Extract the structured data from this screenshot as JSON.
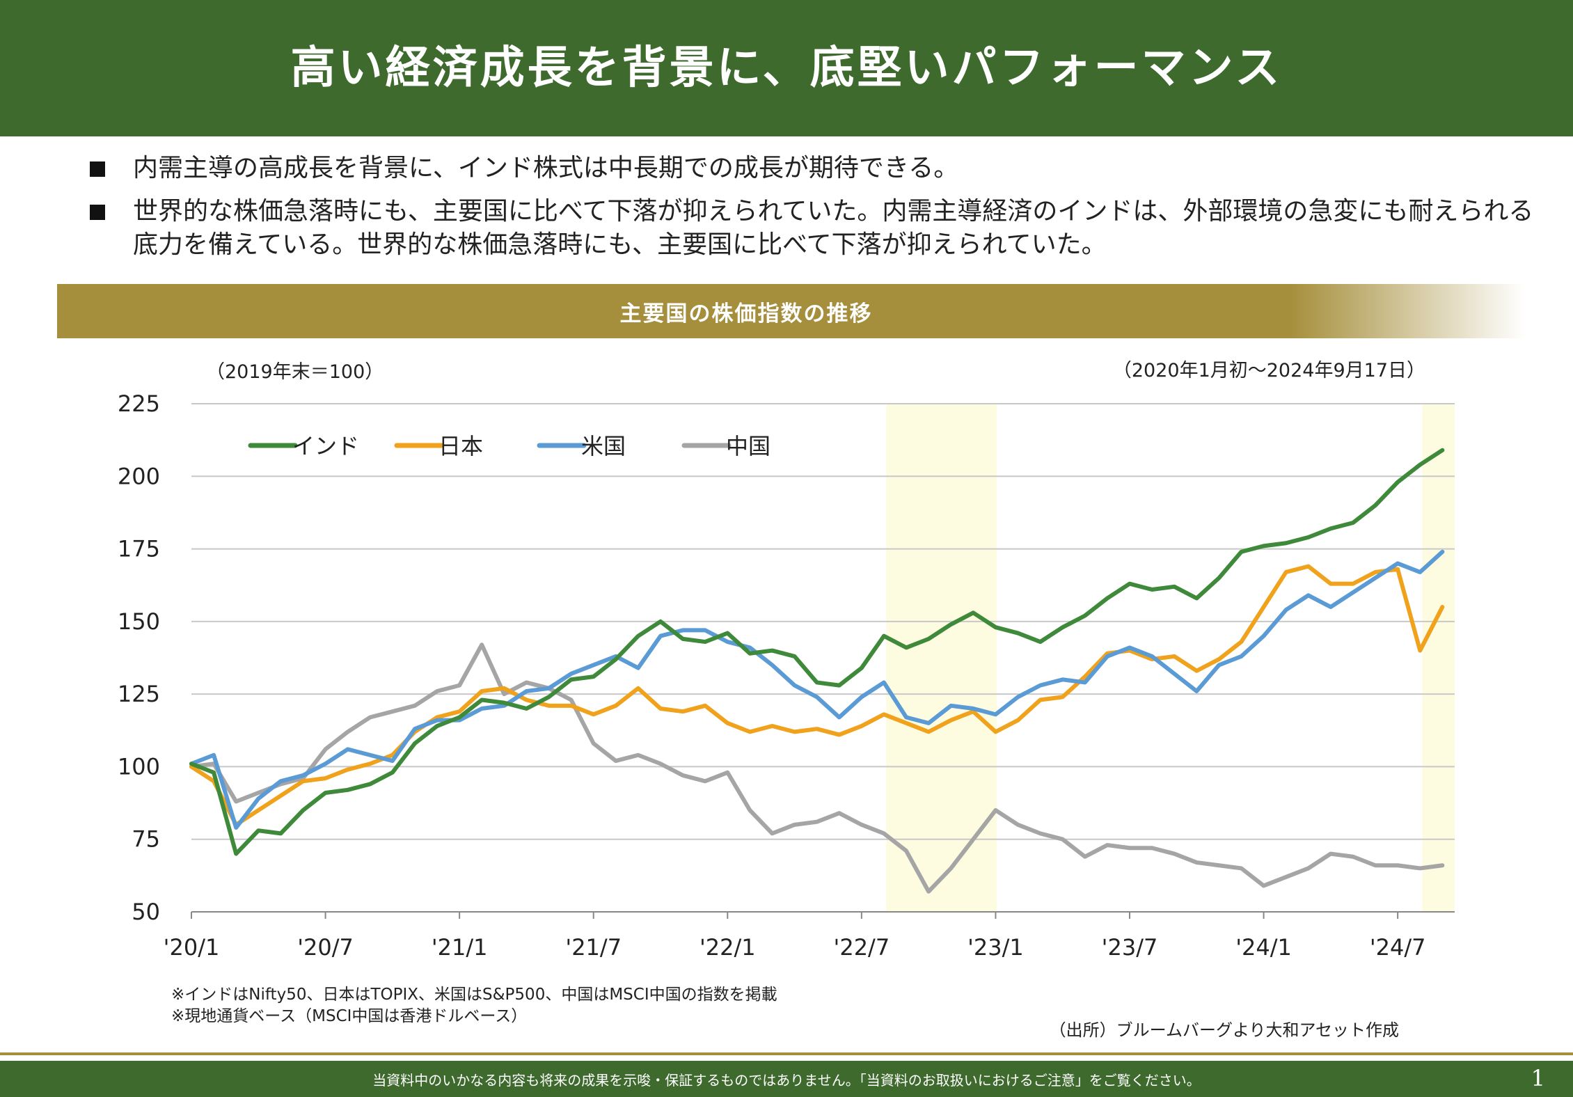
{
  "header": {
    "title": "高い経済成長を背景に、底堅いパフォーマンス"
  },
  "bullets": [
    {
      "text": "内需主導の高成長を背景に、インド株式は中長期での成長が期待できる。"
    },
    {
      "text": "世界的な株価急落時にも、主要国に比べて下落が抑えられていた。内需主導経済のインドは、外部環境の急変にも耐えられる底力を備えている。世界的な株価急落時にも、主要国に比べて下落が抑えられていた。"
    }
  ],
  "chart_banner": {
    "title": "主要国の株価指数の推移"
  },
  "chart_notes": {
    "unit": "（2019年末＝100）",
    "period": "（2020年1月初～2024年9月17日）"
  },
  "footnotes": [
    "※インドはNifty50、日本はTOPIX、米国はS&P500、中国はMSCI中国の指数を掲載",
    "※現地通貨ベース（MSCI中国は香港ドルベース）"
  ],
  "source": "（出所）ブルームバーグより大和アセット作成",
  "footer": {
    "disclaimer": "当資料中のいかなる内容も将来の成果を示唆・保証するものではありません。「当資料のお取扱いにおけるご注意」をご覧ください。",
    "page_number": "1"
  },
  "colors": {
    "header_green": "#3e6a2e",
    "banner_gold": "#a68f3c",
    "highlight": "#fdfce0"
  },
  "chart_data": {
    "type": "line",
    "title": "主要国の株価指数の推移",
    "ylabel": "",
    "xlabel": "",
    "ylim": [
      50,
      225
    ],
    "yticks": [
      50,
      75,
      100,
      125,
      150,
      175,
      200,
      225
    ],
    "xlim": [
      "2020-01",
      "2024-09"
    ],
    "xticks": [
      "'20/1",
      "'20/7",
      "'21/1",
      "'21/7",
      "'22/1",
      "'22/7",
      "'23/1",
      "'23/7",
      "'24/1",
      "'24/7"
    ],
    "grid": "horizontal",
    "legend_position": "top-left",
    "highlight_periods": [
      {
        "start": "2022-08",
        "end": "2023-01"
      },
      {
        "start": "2024-08",
        "end": "2024-09"
      }
    ],
    "x": [
      "2020-01",
      "2020-02",
      "2020-03",
      "2020-04",
      "2020-05",
      "2020-06",
      "2020-07",
      "2020-08",
      "2020-09",
      "2020-10",
      "2020-11",
      "2020-12",
      "2021-01",
      "2021-02",
      "2021-03",
      "2021-04",
      "2021-05",
      "2021-06",
      "2021-07",
      "2021-08",
      "2021-09",
      "2021-10",
      "2021-11",
      "2021-12",
      "2022-01",
      "2022-02",
      "2022-03",
      "2022-04",
      "2022-05",
      "2022-06",
      "2022-07",
      "2022-08",
      "2022-09",
      "2022-10",
      "2022-11",
      "2022-12",
      "2023-01",
      "2023-02",
      "2023-03",
      "2023-04",
      "2023-05",
      "2023-06",
      "2023-07",
      "2023-08",
      "2023-09",
      "2023-10",
      "2023-11",
      "2023-12",
      "2024-01",
      "2024-02",
      "2024-03",
      "2024-04",
      "2024-05",
      "2024-06",
      "2024-07",
      "2024-08",
      "2024-09"
    ],
    "series": [
      {
        "name": "インド",
        "color": "#3f8a3a",
        "values": [
          101,
          98,
          70,
          78,
          77,
          85,
          91,
          92,
          94,
          98,
          108,
          114,
          117,
          123,
          122,
          120,
          124,
          130,
          131,
          137,
          145,
          150,
          144,
          143,
          146,
          139,
          140,
          138,
          129,
          128,
          134,
          145,
          141,
          144,
          149,
          153,
          148,
          146,
          143,
          148,
          152,
          158,
          163,
          161,
          162,
          158,
          165,
          174,
          176,
          177,
          179,
          182,
          184,
          190,
          198,
          204,
          209
        ]
      },
      {
        "name": "日本",
        "color": "#f0a21c",
        "values": [
          100,
          95,
          80,
          85,
          90,
          95,
          96,
          99,
          101,
          104,
          112,
          117,
          119,
          126,
          127,
          123,
          121,
          121,
          118,
          121,
          127,
          120,
          119,
          121,
          115,
          112,
          114,
          112,
          113,
          111,
          114,
          118,
          115,
          112,
          116,
          119,
          112,
          116,
          123,
          124,
          131,
          139,
          140,
          137,
          138,
          133,
          137,
          143,
          155,
          167,
          169,
          163,
          163,
          167,
          168,
          140,
          155
        ]
      },
      {
        "name": "米国",
        "color": "#5b9bd5",
        "values": [
          101,
          104,
          79,
          89,
          95,
          97,
          101,
          106,
          104,
          102,
          113,
          116,
          116,
          120,
          121,
          126,
          127,
          132,
          135,
          138,
          134,
          145,
          147,
          147,
          143,
          141,
          135,
          128,
          124,
          117,
          124,
          129,
          117,
          115,
          121,
          120,
          118,
          124,
          128,
          130,
          129,
          138,
          141,
          138,
          132,
          126,
          135,
          138,
          145,
          154,
          159,
          155,
          160,
          165,
          170,
          167,
          174
        ]
      },
      {
        "name": "中国",
        "color": "#a5a5a5",
        "values": [
          100,
          101,
          88,
          91,
          94,
          96,
          106,
          112,
          117,
          119,
          121,
          126,
          128,
          142,
          125,
          129,
          127,
          123,
          108,
          102,
          104,
          101,
          97,
          95,
          98,
          85,
          77,
          80,
          81,
          84,
          80,
          77,
          71,
          57,
          65,
          75,
          85,
          80,
          77,
          75,
          69,
          73,
          72,
          72,
          70,
          67,
          66,
          65,
          59,
          62,
          65,
          70,
          69,
          66,
          66,
          65,
          66
        ]
      }
    ]
  }
}
